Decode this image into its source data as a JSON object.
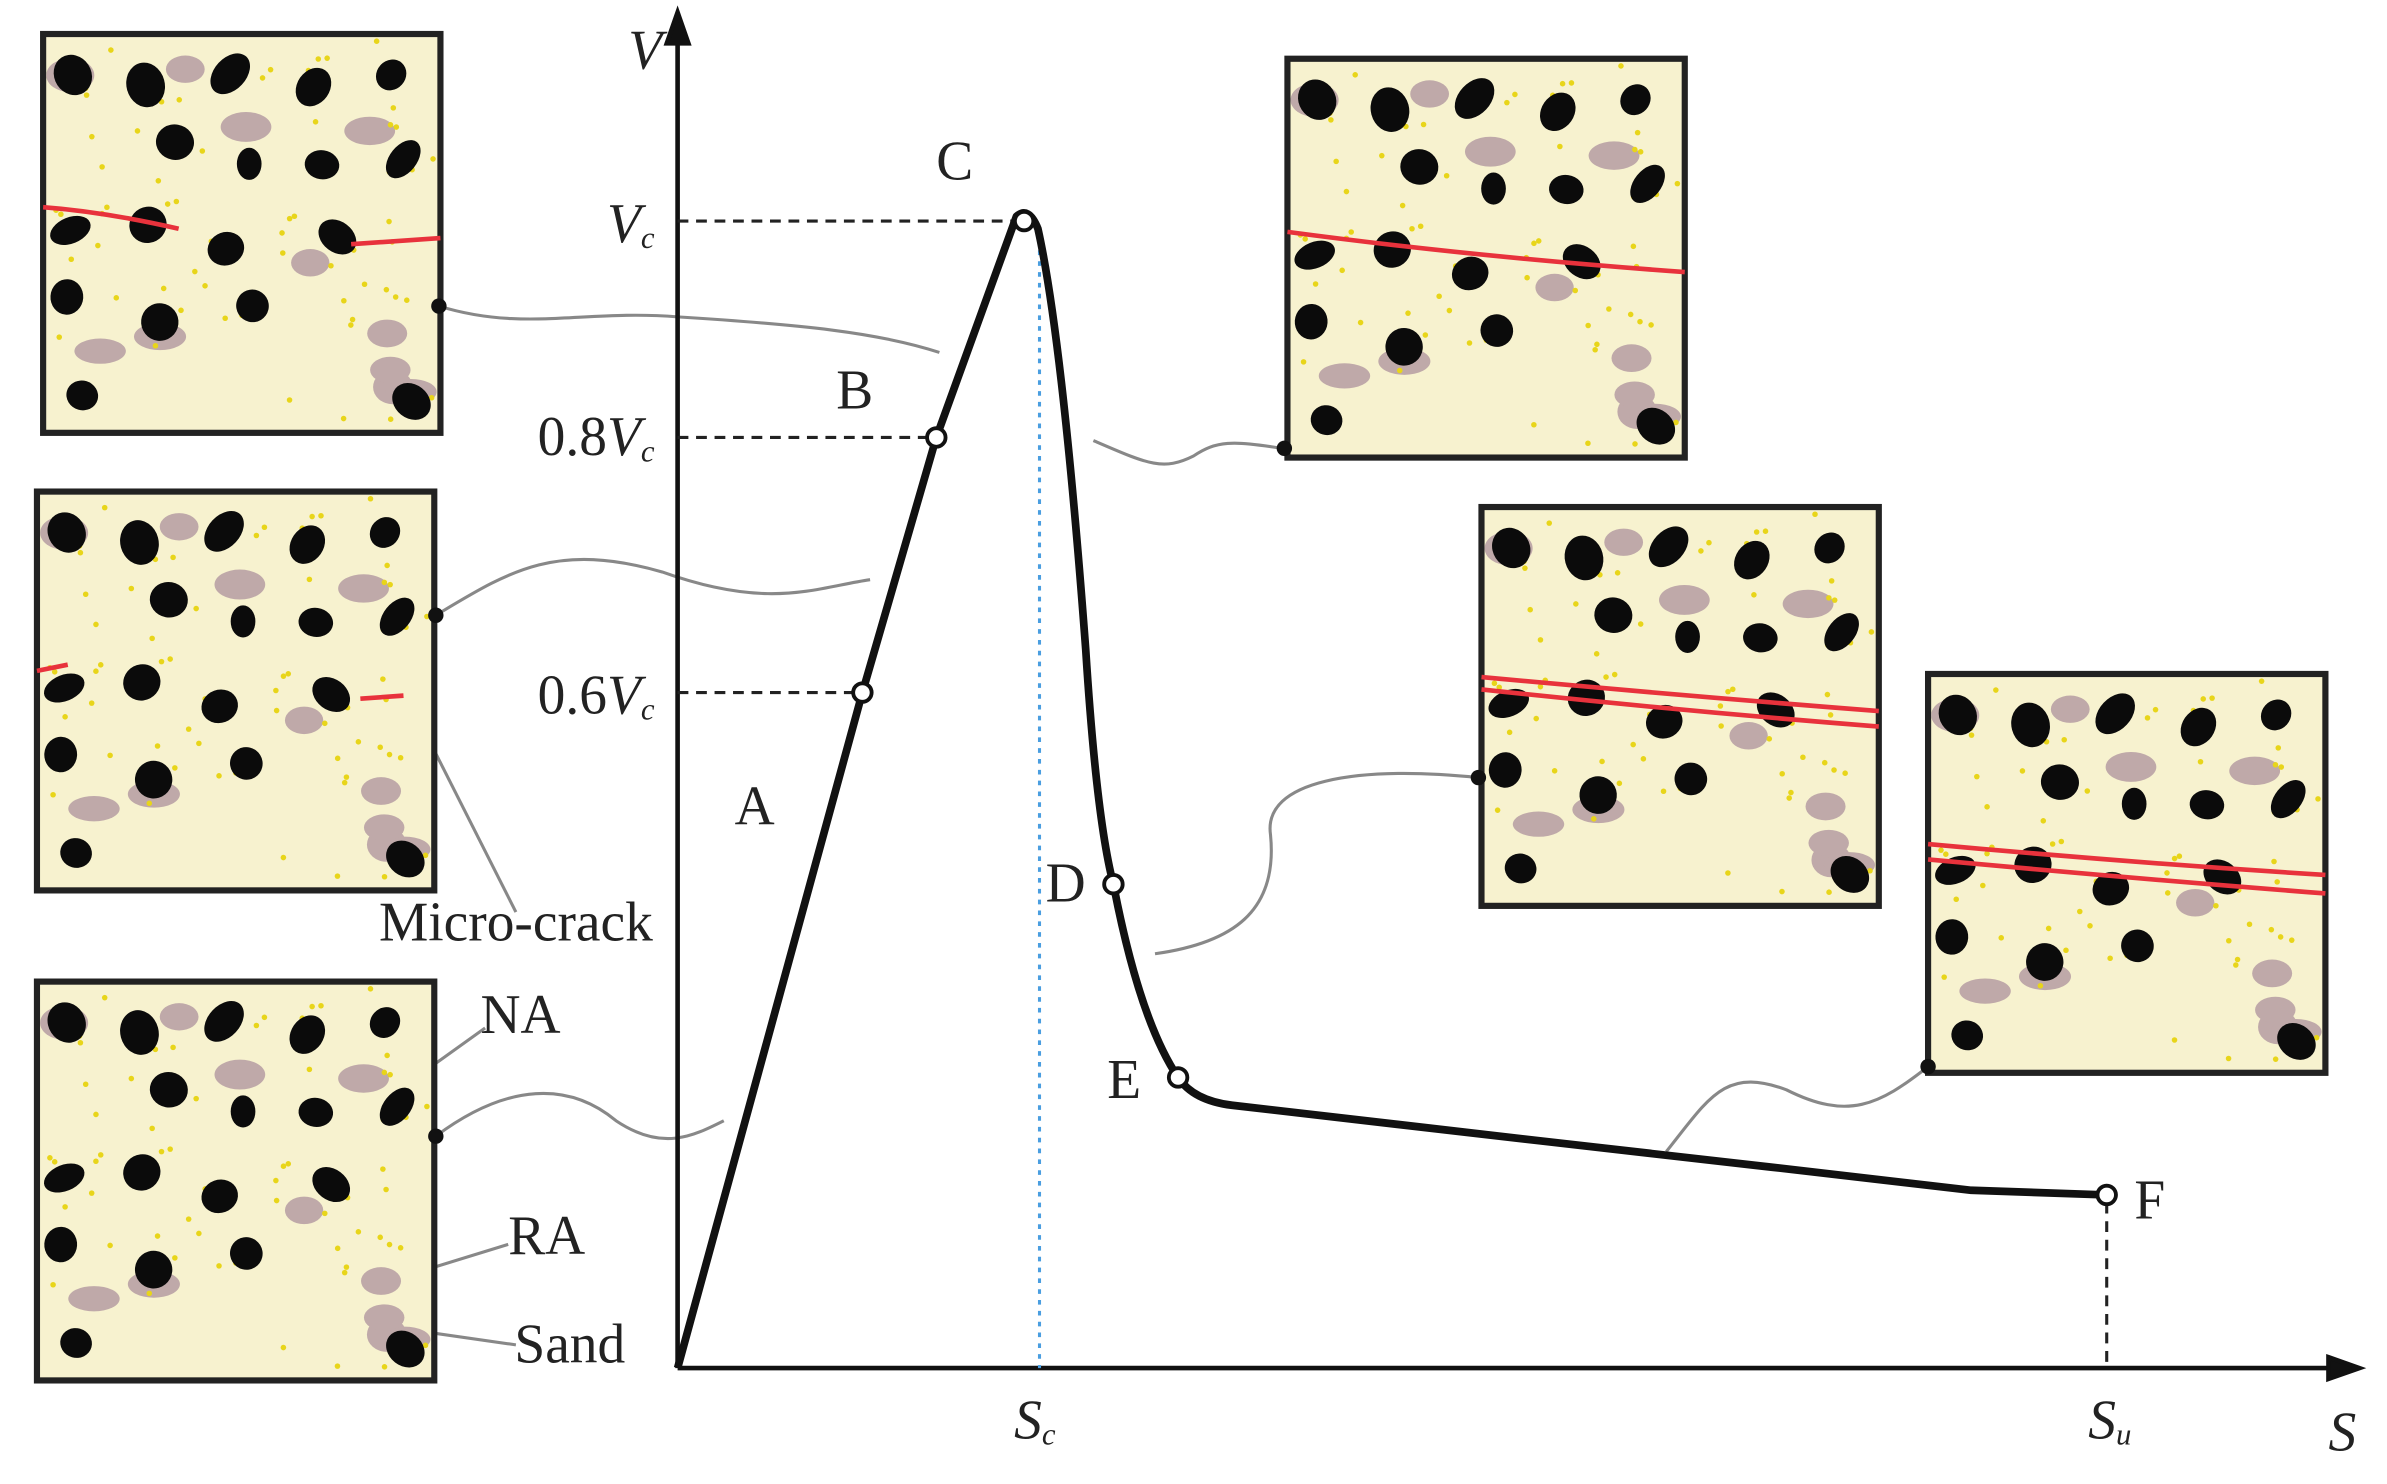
{
  "axes": {
    "y_label": "V",
    "x_label": "S"
  },
  "y_ticks": [
    {
      "var": "V",
      "sub": "c"
    },
    {
      "coef": "0.8",
      "var": "V",
      "sub": "c"
    },
    {
      "coef": "0.6",
      "var": "V",
      "sub": "c"
    }
  ],
  "x_ticks": [
    {
      "var": "S",
      "sub": "c"
    },
    {
      "var": "S",
      "sub": "u"
    }
  ],
  "point_labels": [
    "A",
    "B",
    "C",
    "D",
    "E",
    "F"
  ],
  "annotations": {
    "micro_crack": "Micro-crack",
    "na": "NA",
    "ra": "RA",
    "sand": "Sand"
  }
}
